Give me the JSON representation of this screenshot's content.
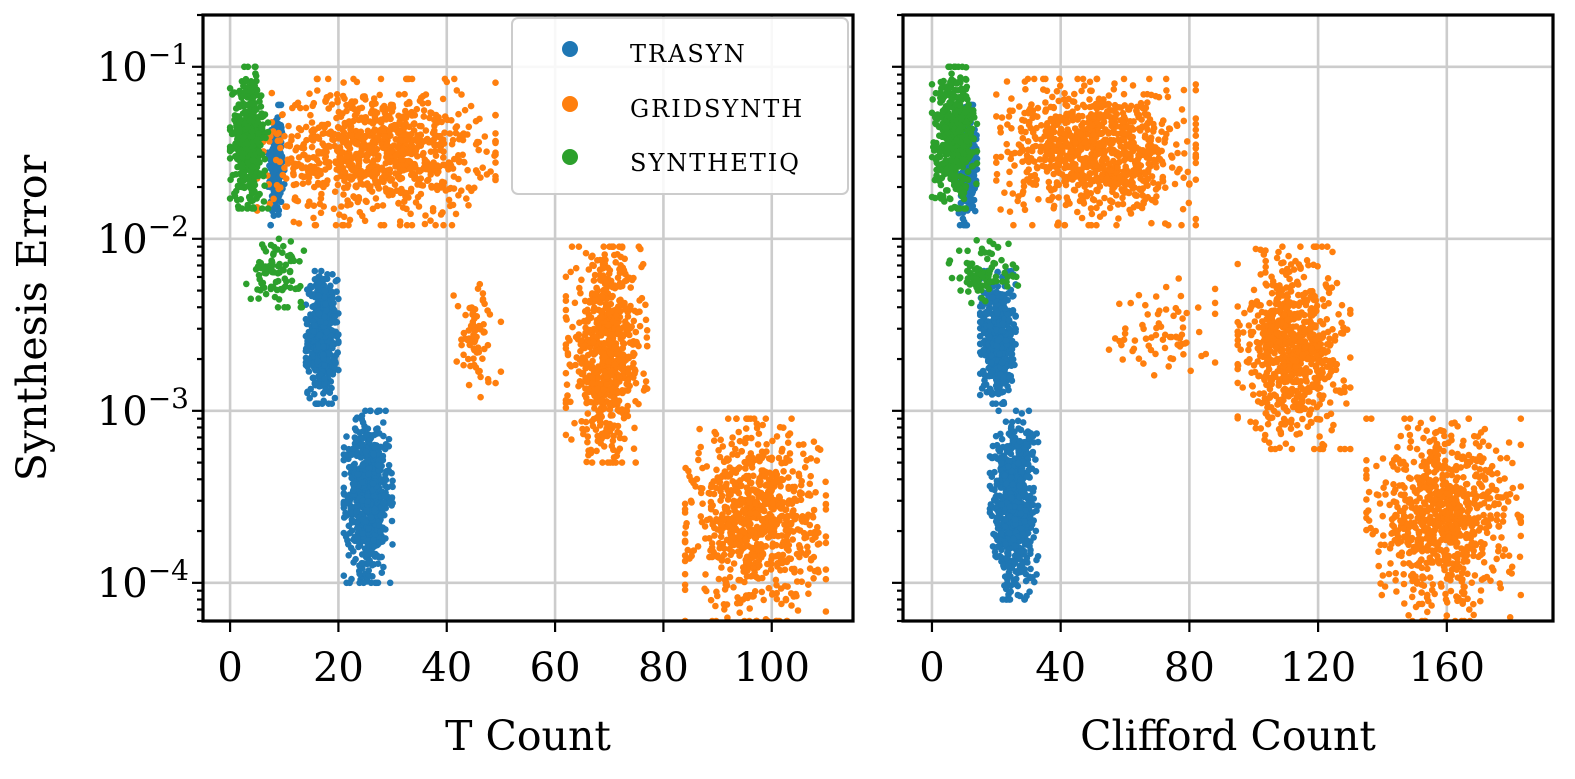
{
  "chart_data": [
    {
      "type": "scatter",
      "xlabel": "T Count",
      "ylabel": "Synthesis Error",
      "yscale": "log",
      "xlim": [
        -5,
        115
      ],
      "ylim": [
        6e-05,
        0.2
      ],
      "grid": true,
      "legend_position": "top-right",
      "xticks": [
        0,
        20,
        40,
        60,
        80,
        100
      ],
      "xtick_labels": [
        "0",
        "20",
        "40",
        "60",
        "80",
        "100"
      ],
      "yticks": [
        0.1,
        0.01,
        0.001,
        0.0001
      ],
      "ytick_exponents": [
        "−1",
        "−2",
        "−3",
        "−4"
      ],
      "ytick_base": "10",
      "series": [
        {
          "name": "TRASYN",
          "clusters": [
            {
              "x_range": [
                7,
                10
              ],
              "y_range": [
                0.012,
                0.06
              ],
              "n": 260
            },
            {
              "x_range": [
                14,
                20
              ],
              "y_range": [
                0.0011,
                0.0065
              ],
              "n": 520
            },
            {
              "x_range": [
                21,
                30
              ],
              "y_range": [
                0.0001,
                0.001
              ],
              "n": 700
            }
          ]
        },
        {
          "name": "GRIDSYNTH",
          "clusters": [
            {
              "x_range": [
                5,
                49
              ],
              "y_range": [
                0.012,
                0.085
              ],
              "n": 900
            },
            {
              "x_range": [
                41,
                50
              ],
              "y_range": [
                0.0012,
                0.006
              ],
              "n": 70
            },
            {
              "x_range": [
                62,
                77
              ],
              "y_range": [
                0.0005,
                0.009
              ],
              "n": 700
            },
            {
              "x_range": [
                84,
                110
              ],
              "y_range": [
                6e-05,
                0.0009
              ],
              "n": 800
            }
          ]
        },
        {
          "name": "SYNTHETIQ",
          "clusters": [
            {
              "x_range": [
                0,
                7
              ],
              "y_range": [
                0.015,
                0.1
              ],
              "n": 450
            },
            {
              "x_range": [
                3,
                14
              ],
              "y_range": [
                0.004,
                0.01
              ],
              "n": 90
            }
          ]
        }
      ]
    },
    {
      "type": "scatter",
      "xlabel": "Clifford Count",
      "ylabel": "",
      "yscale": "log",
      "xlim": [
        -9,
        193
      ],
      "ylim": [
        6e-05,
        0.2
      ],
      "grid": true,
      "xticks": [
        0,
        40,
        80,
        120,
        160
      ],
      "xtick_labels": [
        "0",
        "40",
        "80",
        "120",
        "160"
      ],
      "yticks": [
        0.1,
        0.01,
        0.001,
        0.0001
      ],
      "series": [
        {
          "name": "TRASYN",
          "clusters": [
            {
              "x_range": [
                8,
                14
              ],
              "y_range": [
                0.012,
                0.06
              ],
              "n": 260
            },
            {
              "x_range": [
                15,
                26
              ],
              "y_range": [
                0.0011,
                0.0065
              ],
              "n": 520
            },
            {
              "x_range": [
                18,
                33
              ],
              "y_range": [
                8e-05,
                0.001
              ],
              "n": 700
            }
          ]
        },
        {
          "name": "GRIDSYNTH",
          "clusters": [
            {
              "x_range": [
                20,
                82
              ],
              "y_range": [
                0.012,
                0.085
              ],
              "n": 900
            },
            {
              "x_range": [
                55,
                88
              ],
              "y_range": [
                0.0016,
                0.006
              ],
              "n": 70
            },
            {
              "x_range": [
                95,
                130
              ],
              "y_range": [
                0.0006,
                0.009
              ],
              "n": 700
            },
            {
              "x_range": [
                135,
                183
              ],
              "y_range": [
                6e-05,
                0.0009
              ],
              "n": 800
            }
          ]
        },
        {
          "name": "SYNTHETIQ",
          "clusters": [
            {
              "x_range": [
                0,
                14
              ],
              "y_range": [
                0.015,
                0.1
              ],
              "n": 450
            },
            {
              "x_range": [
                5,
                28
              ],
              "y_range": [
                0.004,
                0.01
              ],
              "n": 90
            }
          ]
        }
      ]
    }
  ],
  "legend": {
    "entries": [
      {
        "label": "TRASYN",
        "color": "#1f77b4"
      },
      {
        "label": "GRIDSYNTH",
        "color": "#ff7f0e"
      },
      {
        "label": "SYNTHETIQ",
        "color": "#2ca02c"
      }
    ]
  },
  "colors": {
    "TRASYN": "#1f77b4",
    "GRIDSYNTH": "#ff7f0e",
    "SYNTHETIQ": "#2ca02c"
  }
}
